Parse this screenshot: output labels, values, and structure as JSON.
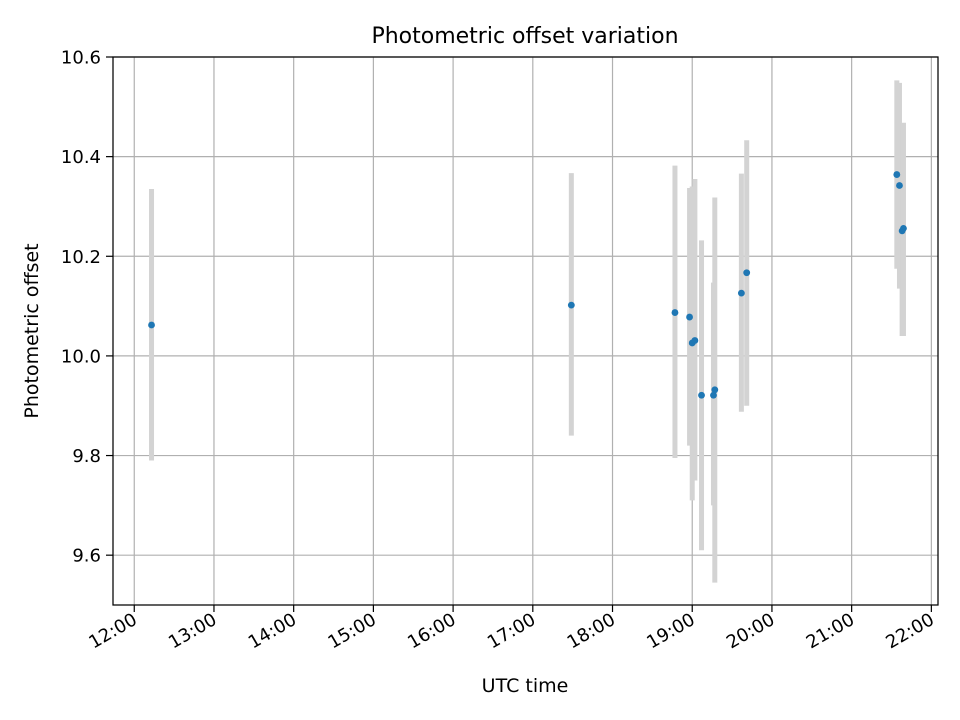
{
  "chart_data": {
    "type": "scatter",
    "title": "Photometric offset variation",
    "xlabel": "UTC time",
    "ylabel": "Photometric offset",
    "x_ticks": [
      "12:00",
      "13:00",
      "14:00",
      "15:00",
      "16:00",
      "17:00",
      "18:00",
      "19:00",
      "20:00",
      "21:00",
      "22:00"
    ],
    "y_ticks": [
      "9.6",
      "9.8",
      "10.0",
      "10.2",
      "10.4",
      "10.6"
    ],
    "xlim": [
      "11:44",
      "22:05"
    ],
    "ylim": [
      9.5,
      10.6
    ],
    "grid": true,
    "colors": {
      "point": "#1f77b4",
      "errorbar": "#d3d3d3",
      "grid": "#b0b0b0"
    },
    "series": [
      {
        "x": [
          "12:13",
          "17:29",
          "18:47",
          "18:58",
          "19:00",
          "19:02",
          "19:07",
          "19:16",
          "19:17",
          "19:37",
          "19:41",
          "21:34",
          "21:36",
          "21:38",
          "21:39"
        ],
        "y": [
          10.062,
          10.102,
          10.087,
          10.078,
          10.026,
          10.031,
          9.921,
          9.921,
          9.932,
          10.126,
          10.167,
          10.364,
          10.342,
          10.251,
          10.256
        ],
        "yerr_low": [
          9.79,
          9.84,
          9.795,
          9.82,
          9.71,
          9.75,
          9.61,
          9.7,
          9.545,
          9.888,
          9.9,
          10.175,
          10.135,
          10.04,
          10.04
        ],
        "yerr_high": [
          10.335,
          10.367,
          10.382,
          10.337,
          10.34,
          10.355,
          10.232,
          10.147,
          10.318,
          10.366,
          10.433,
          10.553,
          10.548,
          10.466,
          10.468
        ]
      }
    ]
  }
}
